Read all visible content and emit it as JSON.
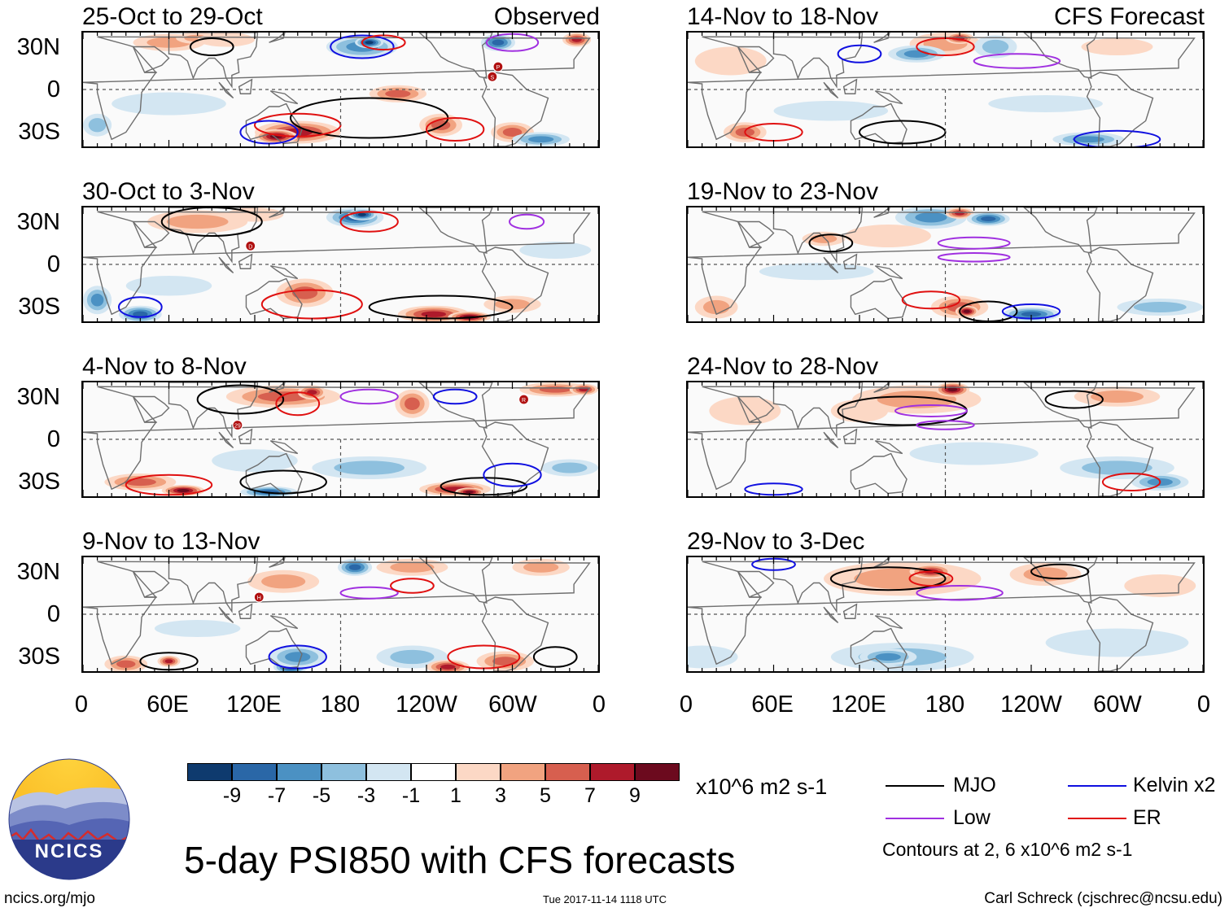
{
  "panels": [
    {
      "title": "25-Oct to 29-Oct",
      "tag": "Observed",
      "storms": [
        {
          "label": "P",
          "lon": 290,
          "lat": 16
        },
        {
          "label": "S",
          "lon": 286,
          "lat": 9
        }
      ]
    },
    {
      "title": "30-Oct to 3-Nov",
      "tag": "",
      "storms": [
        {
          "label": "D",
          "lon": 117,
          "lat": 13
        }
      ]
    },
    {
      "title": "4-Nov to 8-Nov",
      "tag": "",
      "storms": [
        {
          "label": "29",
          "lon": 108,
          "lat": 10
        },
        {
          "label": "R",
          "lon": 308,
          "lat": 28
        }
      ]
    },
    {
      "title": "9-Nov to 13-Nov",
      "tag": "",
      "storms": [
        {
          "label": "H",
          "lon": 123,
          "lat": 12
        }
      ]
    },
    {
      "title": "14-Nov to 18-Nov",
      "tag": "CFS Forecast",
      "storms": []
    },
    {
      "title": "19-Nov to 23-Nov",
      "tag": "",
      "storms": []
    },
    {
      "title": "24-Nov to 28-Nov",
      "tag": "",
      "storms": []
    },
    {
      "title": "29-Nov to 3-Dec",
      "tag": "",
      "storms": []
    }
  ],
  "lat_ticks": [
    "30N",
    "0",
    "30S"
  ],
  "lon_ticks": [
    "0",
    "60E",
    "120E",
    "180",
    "120W",
    "60W",
    "0"
  ],
  "colorbar": {
    "colors": [
      "#0e3a6e",
      "#2a67a7",
      "#4b91c3",
      "#8ec0de",
      "#d3e6f2",
      "#ffffff",
      "#fcd8c5",
      "#f1a380",
      "#d75f4f",
      "#ae1a2b",
      "#6c0a1e"
    ],
    "labels": [
      "-9",
      "-7",
      "-5",
      "-3",
      "-1",
      "1",
      "3",
      "5",
      "7",
      "9"
    ],
    "units": "x10^6 m2 s-1"
  },
  "legend": {
    "items": [
      {
        "name": "MJO",
        "color": "#000000"
      },
      {
        "name": "Kelvin x2",
        "color": "#1010e0"
      },
      {
        "name": "Low",
        "color": "#a030e0"
      },
      {
        "name": "ER",
        "color": "#e01010"
      }
    ],
    "note": "Contours at 2, 6 x10^6 m2 s-1"
  },
  "main_title": "5-day PSI850 with CFS forecasts",
  "logo_text": "NCICS",
  "footer": {
    "url": "ncics.org/mjo",
    "timestamp": "Tue 2017-11-14 1118 UTC",
    "credit": "Carl Schreck (cjschrec@ncsu.edu)"
  }
}
